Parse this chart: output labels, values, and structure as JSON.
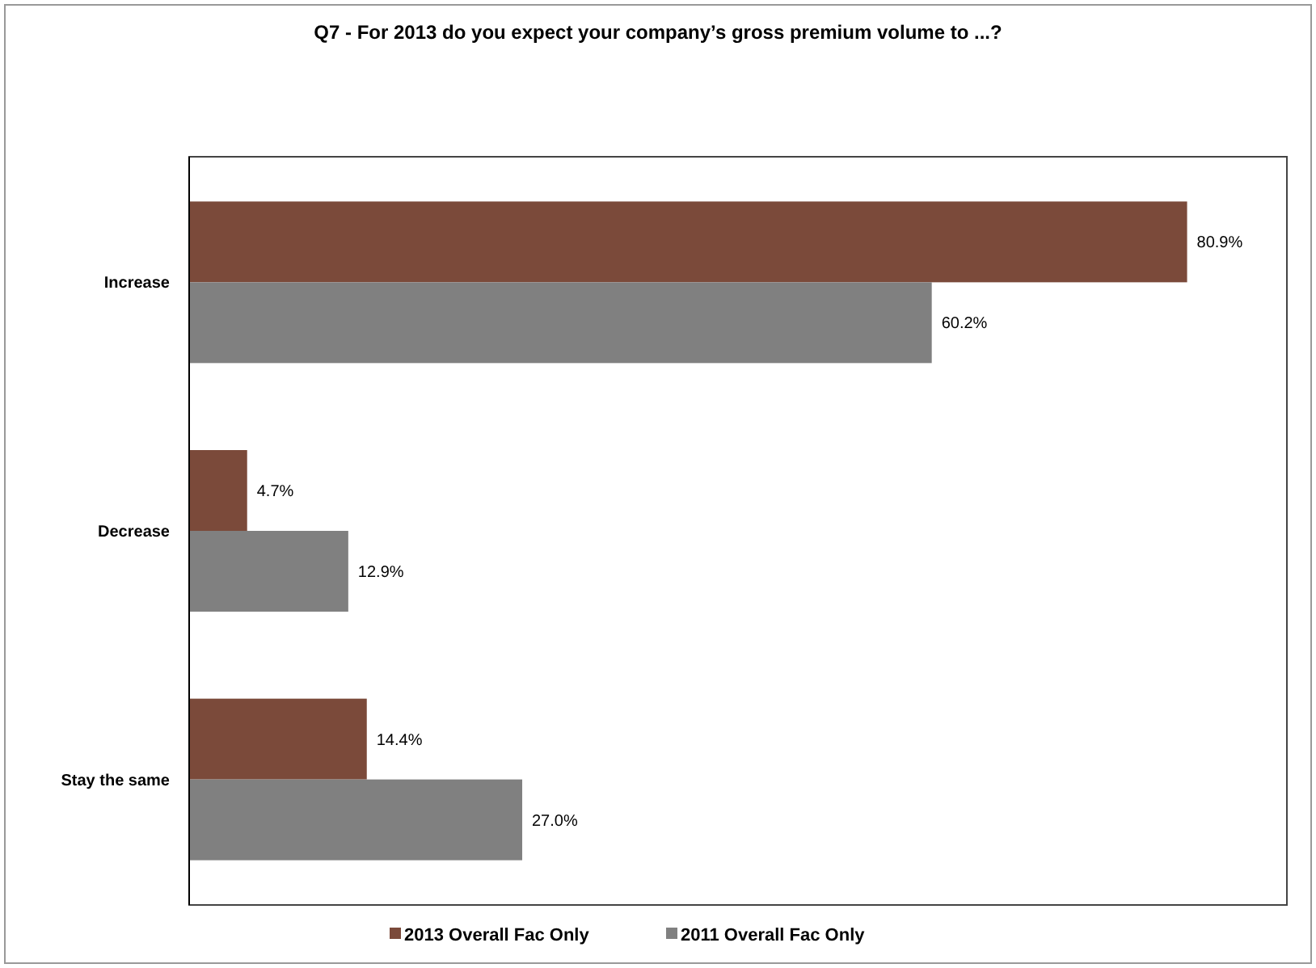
{
  "chart_data": {
    "type": "bar",
    "orientation": "horizontal",
    "title": "Q7 - For 2013 do you expect your company’s gross premium volume to ...?",
    "categories": [
      "Increase",
      "Decrease",
      "Stay the same"
    ],
    "series": [
      {
        "name": "2013 Overall Fac Only",
        "color": "#7b4a3a",
        "values": [
          80.9,
          4.7,
          14.4
        ],
        "value_labels": [
          "80.9%",
          "4.7%",
          "14.4%"
        ]
      },
      {
        "name": "2011 Overall Fac Only",
        "color": "#808080",
        "values": [
          60.2,
          12.9,
          27.0
        ],
        "value_labels": [
          "60.2%",
          "12.9%",
          "27.0%"
        ]
      }
    ],
    "legend": "bottom"
  }
}
